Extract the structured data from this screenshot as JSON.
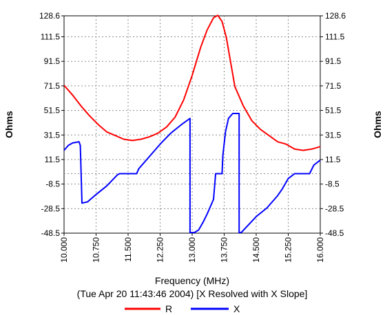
{
  "chart_data": {
    "type": "line",
    "xlabel": "Frequency (MHz)",
    "subtitle": "(Tue Apr 20 11:43:46 2004) [X Resolved with X Slope]",
    "ylabel_left": "Ohms",
    "ylabel_right": "Ohms",
    "xlim": [
      10.0,
      16.0
    ],
    "ylim": [
      -48.5,
      128.6
    ],
    "x_ticks": [
      "10.000",
      "10.750",
      "11.500",
      "12.250",
      "13.000",
      "13.750",
      "14.500",
      "15.250",
      "16.000"
    ],
    "y_ticks": [
      "128.6",
      "111.5",
      "91.5",
      "71.5",
      "51.5",
      "31.5",
      "11.5",
      "-8.5",
      "-28.5",
      "-48.5"
    ],
    "grid": true,
    "legend_position": "bottom",
    "series": [
      {
        "name": "R",
        "color": "#ff0000",
        "x": [
          10.0,
          10.2,
          10.4,
          10.6,
          10.8,
          11.0,
          11.2,
          11.4,
          11.6,
          11.8,
          12.0,
          12.2,
          12.4,
          12.6,
          12.8,
          13.0,
          13.2,
          13.35,
          13.5,
          13.6,
          13.7,
          13.8,
          13.9,
          14.0,
          14.2,
          14.4,
          14.6,
          14.8,
          15.0,
          15.2,
          15.4,
          15.6,
          15.8,
          16.0
        ],
        "y": [
          72,
          64,
          55,
          47,
          40,
          34,
          31,
          28,
          27,
          28,
          30,
          33,
          38,
          46,
          60,
          80,
          103,
          117,
          127,
          129,
          124,
          111,
          91,
          71,
          55,
          43,
          36,
          31,
          26,
          24,
          20,
          19,
          20,
          22
        ]
      },
      {
        "name": "X",
        "color": "#0000ff",
        "x": [
          10.0,
          10.1,
          10.2,
          10.35,
          10.38,
          10.42,
          10.55,
          10.75,
          11.0,
          11.25,
          11.3,
          11.5,
          11.7,
          11.75,
          12.0,
          12.25,
          12.5,
          12.75,
          12.95,
          12.95,
          13.05,
          13.15,
          13.25,
          13.35,
          13.5,
          13.55,
          13.7,
          13.72,
          13.78,
          13.85,
          13.95,
          14.05,
          14.1,
          14.1,
          14.15,
          14.5,
          14.75,
          15.0,
          15.1,
          15.25,
          15.4,
          15.6,
          15.75,
          15.85,
          16.0
        ],
        "y": [
          19,
          23,
          25,
          26,
          23,
          -24,
          -23,
          -17,
          -10,
          -1,
          0,
          0,
          0,
          4,
          14,
          24,
          33,
          40,
          45,
          -48,
          -48,
          -46,
          -40,
          -33,
          -21,
          0,
          0,
          15,
          34,
          45,
          49,
          49,
          49,
          -48,
          -48,
          -35,
          -28,
          -18,
          -13,
          -4,
          0,
          0,
          0,
          7,
          11
        ]
      }
    ]
  }
}
